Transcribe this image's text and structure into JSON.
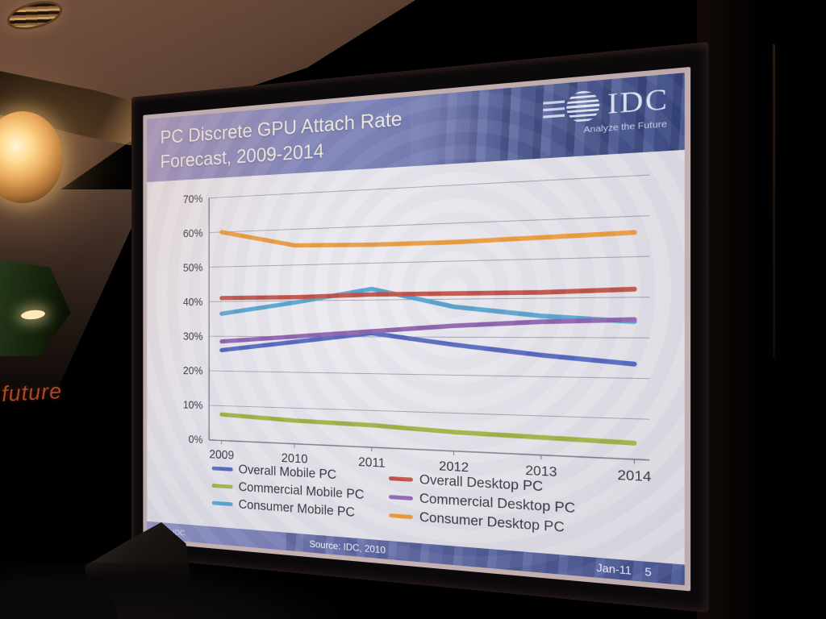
{
  "scene": {
    "future_sign": "future"
  },
  "slide": {
    "title_line1": "PC Discrete GPU Attach Rate",
    "title_line2": "Forecast, 2009-2014",
    "logo": {
      "wordmark": "IDC",
      "tagline": "Analyze the Future"
    },
    "footer": {
      "copyright": "© IDC",
      "source": "Source: IDC, 2010",
      "date": "Jan-11",
      "page": "5"
    }
  },
  "theme": {
    "header_left": "#978fbc",
    "header_mid": "#7b82b6",
    "header_right": "#45548e",
    "footer_left": "#8d90bf",
    "footer_right": "#4d5a97",
    "title_text": "#ece8da",
    "axis_text": "#393440",
    "grid_line": "#a8a5b2",
    "axis_line": "#7d7987",
    "slide_bg": "#e2e1e8"
  },
  "chart_data": {
    "type": "line",
    "title": "PC Discrete GPU Attach Rate Forecast, 2009-2014",
    "categories": [
      "2009",
      "2010",
      "2011",
      "2012",
      "2013",
      "2014"
    ],
    "series": [
      {
        "name": "Overall Mobile PC",
        "color": "#5568bd",
        "values": [
          26,
          28.5,
          31,
          28,
          25.5,
          23.5
        ]
      },
      {
        "name": "Commercial Mobile PC",
        "color": "#a0b046",
        "values": [
          7.5,
          6.5,
          6,
          5,
          4.5,
          4
        ]
      },
      {
        "name": "Consumer Mobile PC",
        "color": "#5ba3cd",
        "values": [
          36.5,
          39.5,
          43,
          38,
          35.5,
          34
        ]
      },
      {
        "name": "Overall Desktop PC",
        "color": "#bf5349",
        "values": [
          41,
          41,
          41.5,
          41.5,
          41.5,
          42
        ]
      },
      {
        "name": "Commercial Desktop PC",
        "color": "#8d64b0",
        "values": [
          28.5,
          30,
          31.5,
          33,
          34,
          34.5
        ]
      },
      {
        "name": "Consumer Desktop PC",
        "color": "#e99b41",
        "values": [
          60,
          55.5,
          55,
          55,
          55.5,
          56
        ]
      }
    ],
    "ylim": [
      0,
      70
    ],
    "ytick_step": 10,
    "ytick_labels": [
      "0%",
      "10%",
      "20%",
      "30%",
      "40%",
      "50%",
      "60%",
      "70%"
    ],
    "xlabel": "",
    "ylabel": "",
    "grid": true,
    "legend_position": "bottom-two-columns"
  }
}
